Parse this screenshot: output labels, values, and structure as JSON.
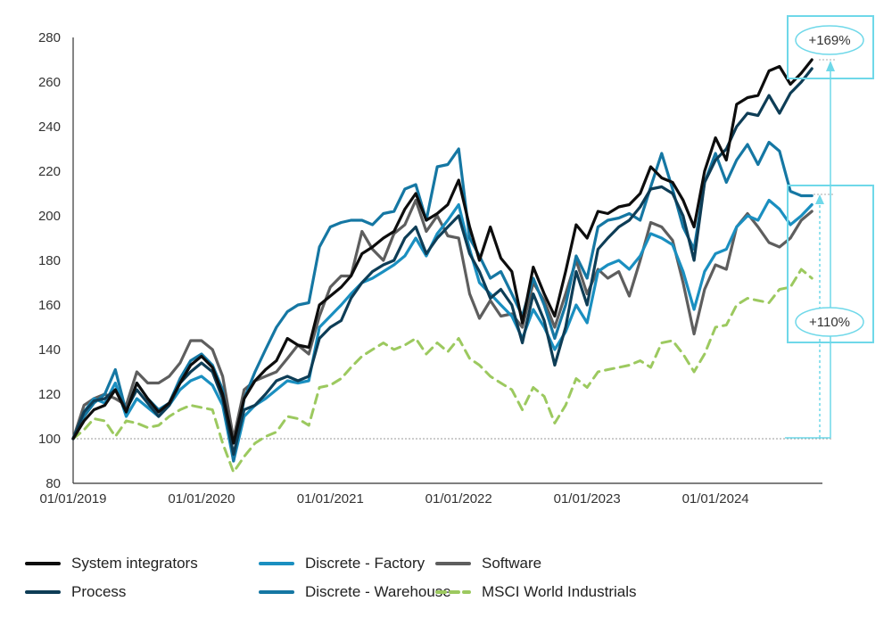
{
  "chart_data": {
    "type": "line",
    "xlabel": "",
    "ylabel": "",
    "x_tick_labels": [
      "01/01/2019",
      "01/01/2020",
      "01/01/2021",
      "01/01/2022",
      "01/01/2023",
      "01/01/2024"
    ],
    "y_ticks": [
      80,
      100,
      120,
      140,
      160,
      180,
      200,
      220,
      240,
      260,
      280
    ],
    "ylim": [
      80,
      280
    ],
    "xlim": [
      "2019-01-01",
      "2024-10-31"
    ],
    "baseline": 100,
    "grid": false,
    "legend_position": "bottom",
    "series": [
      {
        "name": "System integrators",
        "color": "#0d0d0d",
        "dashed": false,
        "x": [
          "2019-01-01",
          "2019-02-01",
          "2019-03-01",
          "2019-04-01",
          "2019-05-01",
          "2019-06-01",
          "2019-07-01",
          "2019-08-01",
          "2019-09-01",
          "2019-10-01",
          "2019-11-01",
          "2019-12-01",
          "2020-01-01",
          "2020-02-01",
          "2020-03-01",
          "2020-04-01",
          "2020-05-01",
          "2020-06-01",
          "2020-07-01",
          "2020-08-01",
          "2020-09-01",
          "2020-10-01",
          "2020-11-01",
          "2020-12-01",
          "2021-01-01",
          "2021-02-01",
          "2021-03-01",
          "2021-04-01",
          "2021-05-01",
          "2021-06-01",
          "2021-07-01",
          "2021-08-01",
          "2021-09-01",
          "2021-10-01",
          "2021-11-01",
          "2021-12-01",
          "2022-01-01",
          "2022-02-01",
          "2022-03-01",
          "2022-04-01",
          "2022-05-01",
          "2022-06-01",
          "2022-07-01",
          "2022-08-01",
          "2022-09-01",
          "2022-10-01",
          "2022-11-01",
          "2022-12-01",
          "2023-01-01",
          "2023-02-01",
          "2023-03-01",
          "2023-04-01",
          "2023-05-01",
          "2023-06-01",
          "2023-07-01",
          "2023-08-01",
          "2023-09-01",
          "2023-10-01",
          "2023-11-01",
          "2023-12-01",
          "2024-01-01",
          "2024-02-01",
          "2024-03-01",
          "2024-04-01",
          "2024-05-01",
          "2024-06-01",
          "2024-07-01",
          "2024-08-01",
          "2024-09-01",
          "2024-10-01"
        ],
        "values": [
          100,
          108,
          113,
          115,
          122,
          112,
          125,
          118,
          112,
          116,
          125,
          133,
          137,
          132,
          120,
          98,
          118,
          126,
          131,
          135,
          145,
          142,
          141,
          160,
          164,
          168,
          173,
          183,
          186,
          190,
          193,
          203,
          210,
          198,
          201,
          205,
          216,
          195,
          180,
          195,
          181,
          175,
          152,
          177,
          165,
          155,
          175,
          196,
          190,
          202,
          201,
          204,
          205,
          210,
          222,
          217,
          215,
          207,
          195,
          220,
          235,
          225,
          250,
          253,
          254,
          265,
          267,
          259,
          264,
          270
        ]
      },
      {
        "name": "Discrete - Factory",
        "color": "#1a8fc0",
        "dashed": false,
        "x": [
          "2019-01-01",
          "2019-02-01",
          "2019-03-01",
          "2019-04-01",
          "2019-05-01",
          "2019-06-01",
          "2019-07-01",
          "2019-08-01",
          "2019-09-01",
          "2019-10-01",
          "2019-11-01",
          "2019-12-01",
          "2020-01-01",
          "2020-02-01",
          "2020-03-01",
          "2020-04-01",
          "2020-05-01",
          "2020-06-01",
          "2020-07-01",
          "2020-08-01",
          "2020-09-01",
          "2020-10-01",
          "2020-11-01",
          "2020-12-01",
          "2021-01-01",
          "2021-02-01",
          "2021-03-01",
          "2021-04-01",
          "2021-05-01",
          "2021-06-01",
          "2021-07-01",
          "2021-08-01",
          "2021-09-01",
          "2021-10-01",
          "2021-11-01",
          "2021-12-01",
          "2022-01-01",
          "2022-02-01",
          "2022-03-01",
          "2022-04-01",
          "2022-05-01",
          "2022-06-01",
          "2022-07-01",
          "2022-08-01",
          "2022-09-01",
          "2022-10-01",
          "2022-11-01",
          "2022-12-01",
          "2023-01-01",
          "2023-02-01",
          "2023-03-01",
          "2023-04-01",
          "2023-05-01",
          "2023-06-01",
          "2023-07-01",
          "2023-08-01",
          "2023-09-01",
          "2023-10-01",
          "2023-11-01",
          "2023-12-01",
          "2024-01-01",
          "2024-02-01",
          "2024-03-01",
          "2024-04-01",
          "2024-05-01",
          "2024-06-01",
          "2024-07-01",
          "2024-08-01",
          "2024-09-01",
          "2024-10-01"
        ],
        "values": [
          100,
          112,
          118,
          116,
          125,
          110,
          118,
          114,
          110,
          115,
          122,
          126,
          128,
          124,
          115,
          90,
          110,
          115,
          118,
          122,
          126,
          125,
          126,
          150,
          155,
          160,
          165,
          170,
          172,
          175,
          178,
          182,
          190,
          182,
          192,
          198,
          205,
          185,
          170,
          165,
          160,
          155,
          145,
          158,
          150,
          140,
          148,
          160,
          152,
          175,
          178,
          180,
          176,
          182,
          192,
          190,
          187,
          175,
          158,
          175,
          183,
          185,
          195,
          200,
          198,
          207,
          203,
          196,
          200,
          205
        ]
      },
      {
        "name": "Software",
        "color": "#5e5e5e",
        "dashed": false,
        "x": [
          "2019-01-01",
          "2019-02-01",
          "2019-03-01",
          "2019-04-01",
          "2019-05-01",
          "2019-06-01",
          "2019-07-01",
          "2019-08-01",
          "2019-09-01",
          "2019-10-01",
          "2019-11-01",
          "2019-12-01",
          "2020-01-01",
          "2020-02-01",
          "2020-03-01",
          "2020-04-01",
          "2020-05-01",
          "2020-06-01",
          "2020-07-01",
          "2020-08-01",
          "2020-09-01",
          "2020-10-01",
          "2020-11-01",
          "2020-12-01",
          "2021-01-01",
          "2021-02-01",
          "2021-03-01",
          "2021-04-01",
          "2021-05-01",
          "2021-06-01",
          "2021-07-01",
          "2021-08-01",
          "2021-09-01",
          "2021-10-01",
          "2021-11-01",
          "2021-12-01",
          "2022-01-01",
          "2022-02-01",
          "2022-03-01",
          "2022-04-01",
          "2022-05-01",
          "2022-06-01",
          "2022-07-01",
          "2022-08-01",
          "2022-09-01",
          "2022-10-01",
          "2022-11-01",
          "2022-12-01",
          "2023-01-01",
          "2023-02-01",
          "2023-03-01",
          "2023-04-01",
          "2023-05-01",
          "2023-06-01",
          "2023-07-01",
          "2023-08-01",
          "2023-09-01",
          "2023-10-01",
          "2023-11-01",
          "2023-12-01",
          "2024-01-01",
          "2024-02-01",
          "2024-03-01",
          "2024-04-01",
          "2024-05-01",
          "2024-06-01",
          "2024-07-01",
          "2024-08-01",
          "2024-09-01",
          "2024-10-01"
        ],
        "values": [
          100,
          115,
          118,
          120,
          118,
          115,
          130,
          125,
          125,
          128,
          134,
          144,
          144,
          140,
          128,
          100,
          122,
          126,
          128,
          130,
          136,
          142,
          138,
          155,
          168,
          173,
          173,
          193,
          185,
          180,
          192,
          196,
          207,
          193,
          200,
          191,
          190,
          165,
          154,
          162,
          155,
          156,
          150,
          170,
          162,
          150,
          165,
          180,
          165,
          176,
          172,
          175,
          164,
          180,
          197,
          195,
          189,
          170,
          147,
          167,
          178,
          176,
          195,
          201,
          195,
          188,
          186,
          190,
          198,
          202
        ]
      },
      {
        "name": "Process",
        "color": "#0e3d56",
        "dashed": false,
        "x": [
          "2019-01-01",
          "2019-02-01",
          "2019-03-01",
          "2019-04-01",
          "2019-05-01",
          "2019-06-01",
          "2019-07-01",
          "2019-08-01",
          "2019-09-01",
          "2019-10-01",
          "2019-11-01",
          "2019-12-01",
          "2020-01-01",
          "2020-02-01",
          "2020-03-01",
          "2020-04-01",
          "2020-05-01",
          "2020-06-01",
          "2020-07-01",
          "2020-08-01",
          "2020-09-01",
          "2020-10-01",
          "2020-11-01",
          "2020-12-01",
          "2021-01-01",
          "2021-02-01",
          "2021-03-01",
          "2021-04-01",
          "2021-05-01",
          "2021-06-01",
          "2021-07-01",
          "2021-08-01",
          "2021-09-01",
          "2021-10-01",
          "2021-11-01",
          "2021-12-01",
          "2022-01-01",
          "2022-02-01",
          "2022-03-01",
          "2022-04-01",
          "2022-05-01",
          "2022-06-01",
          "2022-07-01",
          "2022-08-01",
          "2022-09-01",
          "2022-10-01",
          "2022-11-01",
          "2022-12-01",
          "2023-01-01",
          "2023-02-01",
          "2023-03-01",
          "2023-04-01",
          "2023-05-01",
          "2023-06-01",
          "2023-07-01",
          "2023-08-01",
          "2023-09-01",
          "2023-10-01",
          "2023-11-01",
          "2023-12-01",
          "2024-01-01",
          "2024-02-01",
          "2024-03-01",
          "2024-04-01",
          "2024-05-01",
          "2024-06-01",
          "2024-07-01",
          "2024-08-01",
          "2024-09-01",
          "2024-10-01"
        ],
        "values": [
          100,
          112,
          117,
          118,
          122,
          113,
          122,
          116,
          110,
          115,
          125,
          130,
          134,
          130,
          118,
          93,
          113,
          115,
          120,
          126,
          128,
          126,
          128,
          145,
          150,
          153,
          163,
          170,
          175,
          178,
          180,
          190,
          195,
          183,
          190,
          195,
          200,
          183,
          175,
          163,
          167,
          160,
          143,
          165,
          153,
          133,
          150,
          175,
          160,
          185,
          190,
          195,
          198,
          204,
          212,
          213,
          210,
          200,
          180,
          215,
          225,
          230,
          240,
          246,
          245,
          254,
          246,
          255,
          260,
          266
        ]
      },
      {
        "name": "Discrete - Warehouse",
        "color": "#1577a3",
        "dashed": false,
        "x": [
          "2019-01-01",
          "2019-02-01",
          "2019-03-01",
          "2019-04-01",
          "2019-05-01",
          "2019-06-01",
          "2019-07-01",
          "2019-08-01",
          "2019-09-01",
          "2019-10-01",
          "2019-11-01",
          "2019-12-01",
          "2020-01-01",
          "2020-02-01",
          "2020-03-01",
          "2020-04-01",
          "2020-05-01",
          "2020-06-01",
          "2020-07-01",
          "2020-08-01",
          "2020-09-01",
          "2020-10-01",
          "2020-11-01",
          "2020-12-01",
          "2021-01-01",
          "2021-02-01",
          "2021-03-01",
          "2021-04-01",
          "2021-05-01",
          "2021-06-01",
          "2021-07-01",
          "2021-08-01",
          "2021-09-01",
          "2021-10-01",
          "2021-11-01",
          "2021-12-01",
          "2022-01-01",
          "2022-02-01",
          "2022-03-01",
          "2022-04-01",
          "2022-05-01",
          "2022-06-01",
          "2022-07-01",
          "2022-08-01",
          "2022-09-01",
          "2022-10-01",
          "2022-11-01",
          "2022-12-01",
          "2023-01-01",
          "2023-02-01",
          "2023-03-01",
          "2023-04-01",
          "2023-05-01",
          "2023-06-01",
          "2023-07-01",
          "2023-08-01",
          "2023-09-01",
          "2023-10-01",
          "2023-11-01",
          "2023-12-01",
          "2024-01-01",
          "2024-02-01",
          "2024-03-01",
          "2024-04-01",
          "2024-05-01",
          "2024-06-01",
          "2024-07-01",
          "2024-08-01",
          "2024-09-01",
          "2024-10-01"
        ],
        "values": [
          100,
          110,
          116,
          120,
          131,
          112,
          125,
          118,
          113,
          116,
          127,
          135,
          138,
          133,
          122,
          90,
          118,
          130,
          140,
          150,
          157,
          160,
          161,
          186,
          195,
          197,
          198,
          198,
          196,
          201,
          202,
          212,
          214,
          198,
          222,
          223,
          230,
          190,
          182,
          172,
          175,
          165,
          155,
          172,
          160,
          145,
          160,
          182,
          172,
          195,
          198,
          199,
          201,
          198,
          213,
          228,
          212,
          195,
          185,
          215,
          228,
          215,
          225,
          232,
          223,
          233,
          229,
          211,
          209,
          209
        ]
      },
      {
        "name": "MSCI World Industrials",
        "color": "#9cc95f",
        "dashed": true,
        "x": [
          "2019-01-01",
          "2019-02-01",
          "2019-03-01",
          "2019-04-01",
          "2019-05-01",
          "2019-06-01",
          "2019-07-01",
          "2019-08-01",
          "2019-09-01",
          "2019-10-01",
          "2019-11-01",
          "2019-12-01",
          "2020-01-01",
          "2020-02-01",
          "2020-03-01",
          "2020-04-01",
          "2020-05-01",
          "2020-06-01",
          "2020-07-01",
          "2020-08-01",
          "2020-09-01",
          "2020-10-01",
          "2020-11-01",
          "2020-12-01",
          "2021-01-01",
          "2021-02-01",
          "2021-03-01",
          "2021-04-01",
          "2021-05-01",
          "2021-06-01",
          "2021-07-01",
          "2021-08-01",
          "2021-09-01",
          "2021-10-01",
          "2021-11-01",
          "2021-12-01",
          "2022-01-01",
          "2022-02-01",
          "2022-03-01",
          "2022-04-01",
          "2022-05-01",
          "2022-06-01",
          "2022-07-01",
          "2022-08-01",
          "2022-09-01",
          "2022-10-01",
          "2022-11-01",
          "2022-12-01",
          "2023-01-01",
          "2023-02-01",
          "2023-03-01",
          "2023-04-01",
          "2023-05-01",
          "2023-06-01",
          "2023-07-01",
          "2023-08-01",
          "2023-09-01",
          "2023-10-01",
          "2023-11-01",
          "2023-12-01",
          "2024-01-01",
          "2024-02-01",
          "2024-03-01",
          "2024-04-01",
          "2024-05-01",
          "2024-06-01",
          "2024-07-01",
          "2024-08-01",
          "2024-09-01",
          "2024-10-01"
        ],
        "values": [
          100,
          104,
          109,
          108,
          101,
          108,
          107,
          105,
          106,
          110,
          113,
          115,
          114,
          113,
          98,
          85,
          92,
          98,
          101,
          103,
          110,
          109,
          106,
          123,
          124,
          127,
          132,
          137,
          140,
          143,
          140,
          142,
          145,
          138,
          143,
          139,
          145,
          136,
          133,
          128,
          125,
          122,
          113,
          123,
          119,
          107,
          115,
          127,
          123,
          130,
          131,
          132,
          133,
          135,
          132,
          143,
          144,
          138,
          130,
          138,
          150,
          151,
          160,
          163,
          162,
          161,
          167,
          168,
          176,
          172
        ]
      }
    ],
    "annotations": [
      {
        "label": "+169%"
      },
      {
        "label": "+110%"
      }
    ],
    "annotation_color": "#6fd8e9"
  }
}
